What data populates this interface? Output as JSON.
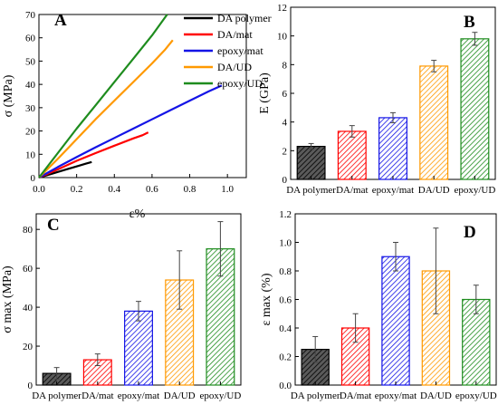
{
  "colors": {
    "black": "#000000",
    "red": "#ff0000",
    "blue": "#1414e6",
    "orange": "#ff9900",
    "green": "#1e8c1e",
    "bar_dark_fill": "#5a5a5a"
  },
  "chart_data": [
    {
      "panel": "A",
      "type": "line",
      "xlabel": "ε%",
      "ylabel": "σ (MPa)",
      "xlim": [
        0,
        1.1
      ],
      "ylim": [
        0,
        70
      ],
      "xticks": [
        "0.0",
        "0.2",
        "0.4",
        "0.6",
        "0.8",
        "1.0"
      ],
      "yticks": [
        "0",
        "10",
        "20",
        "30",
        "40",
        "50",
        "60",
        "70"
      ],
      "legend_position": "top-right",
      "series": [
        {
          "name": "DA polymer",
          "color": "#000000",
          "x": [
            0,
            0.05,
            0.1,
            0.15,
            0.2,
            0.25,
            0.28
          ],
          "y": [
            0,
            1.2,
            2.4,
            3.6,
            4.8,
            6.0,
            6.7
          ]
        },
        {
          "name": "DA/mat",
          "color": "#ff0000",
          "x": [
            0,
            0.1,
            0.2,
            0.3,
            0.4,
            0.5,
            0.55,
            0.58
          ],
          "y": [
            0,
            3.5,
            7.2,
            10.5,
            13.7,
            16.8,
            18.2,
            19.4
          ]
        },
        {
          "name": "epoxy/mat",
          "color": "#1414e6",
          "x": [
            0,
            0.1,
            0.2,
            0.3,
            0.4,
            0.5,
            0.6,
            0.7,
            0.8,
            0.9,
            0.97
          ],
          "y": [
            0,
            4.5,
            8.8,
            13,
            17,
            21,
            25,
            29,
            33,
            37,
            39.5
          ]
        },
        {
          "name": "DA/UD",
          "color": "#ff9900",
          "x": [
            0,
            0.1,
            0.2,
            0.3,
            0.4,
            0.5,
            0.6,
            0.67,
            0.71
          ],
          "y": [
            0,
            8,
            16.5,
            25,
            33,
            41,
            49,
            55,
            59
          ]
        },
        {
          "name": "epoxy/UD",
          "color": "#1e8c1e",
          "x": [
            0,
            0.1,
            0.2,
            0.3,
            0.4,
            0.5,
            0.6,
            0.68
          ],
          "y": [
            0,
            10.5,
            21,
            31,
            41,
            51,
            61,
            70
          ]
        }
      ]
    },
    {
      "panel": "B",
      "type": "bar",
      "xlabel": "",
      "ylabel": "E (GPa)",
      "ylim": [
        0,
        12
      ],
      "yticks": [
        "0",
        "2",
        "4",
        "6",
        "8",
        "10",
        "12"
      ],
      "categories": [
        "DA polymer",
        "DA/mat",
        "epoxy/mat",
        "DA/UD",
        "epoxy/UD"
      ],
      "values": [
        2.3,
        3.35,
        4.3,
        7.9,
        9.8
      ],
      "errors": [
        0.2,
        0.4,
        0.35,
        0.4,
        0.45
      ],
      "bar_colors": [
        "#000000",
        "#ff0000",
        "#1414e6",
        "#ff9900",
        "#1e8c1e"
      ]
    },
    {
      "panel": "C",
      "type": "bar",
      "xlabel": "",
      "ylabel": "σ max (MPa)",
      "ylim": [
        0,
        88
      ],
      "yticks": [
        "0",
        "20",
        "40",
        "60",
        "80"
      ],
      "categories": [
        "DA polymer",
        "DA/mat",
        "epoxy/mat",
        "DA/UD",
        "epoxy/UD"
      ],
      "values": [
        6,
        13,
        38,
        54,
        70
      ],
      "errors": [
        3,
        3,
        5,
        15,
        14
      ],
      "bar_colors": [
        "#000000",
        "#ff0000",
        "#1414e6",
        "#ff9900",
        "#1e8c1e"
      ]
    },
    {
      "panel": "D",
      "type": "bar",
      "xlabel": "",
      "ylabel": "ε max (%)",
      "ylim": [
        0,
        1.2
      ],
      "yticks": [
        "0.0",
        "0.2",
        "0.4",
        "0.6",
        "0.8",
        "1.0",
        "1.2"
      ],
      "categories": [
        "DA polymer",
        "DA/mat",
        "epoxy/mat",
        "DA/UD",
        "epoxy/UD"
      ],
      "values": [
        0.25,
        0.4,
        0.9,
        0.8,
        0.6
      ],
      "errors": [
        0.09,
        0.1,
        0.1,
        0.3,
        0.1
      ],
      "bar_colors": [
        "#000000",
        "#ff0000",
        "#1414e6",
        "#ff9900",
        "#1e8c1e"
      ]
    }
  ]
}
